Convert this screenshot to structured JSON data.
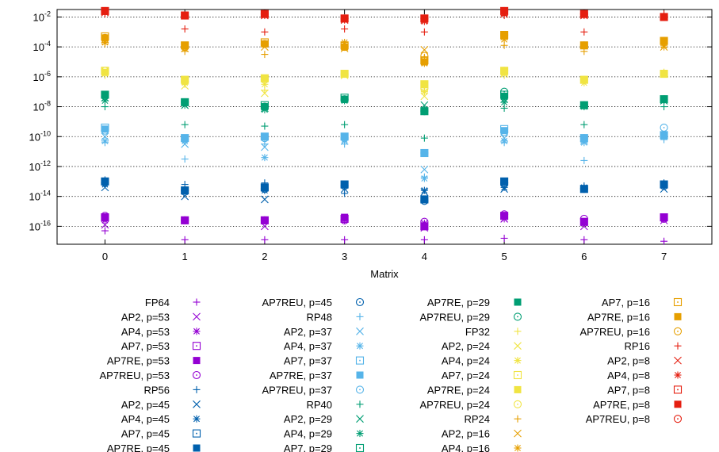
{
  "chart_data": {
    "type": "scatter",
    "xlabel": "Matrix",
    "ylabel": "",
    "x_ticks": [
      "0",
      "1",
      "2",
      "3",
      "4",
      "5",
      "6",
      "7"
    ],
    "xlim": [
      -0.6,
      7.6
    ],
    "ylim_log10": [
      -17.2,
      -1.5
    ],
    "y_scale": "log",
    "y_ticks": [
      {
        "exp": -2,
        "base": "10",
        "sup": "-2"
      },
      {
        "exp": -4,
        "base": "10",
        "sup": "-4"
      },
      {
        "exp": -6,
        "base": "10",
        "sup": "-6"
      },
      {
        "exp": -8,
        "base": "10",
        "sup": "-8"
      },
      {
        "exp": -10,
        "base": "10",
        "sup": "-10"
      },
      {
        "exp": -12,
        "base": "10",
        "sup": "-12"
      },
      {
        "exp": -14,
        "base": "10",
        "sup": "-14"
      },
      {
        "exp": -16,
        "base": "10",
        "sup": "-16"
      }
    ],
    "grid": "dotted-horizontal",
    "legend_placement": "bottom",
    "series": [
      {
        "name": "FP64",
        "color": "#9400d3",
        "marker": "plus",
        "log10": [
          -16.3,
          -16.9,
          -16.9,
          -16.9,
          -16.9,
          -16.8,
          -16.9,
          -17.0
        ]
      },
      {
        "name": "AP2, p=53",
        "color": "#9400d3",
        "marker": "cross",
        "log10": [
          -15.9,
          -15.6,
          -16.0,
          -15.5,
          -16.1,
          -15.5,
          -16.0,
          -15.6
        ]
      },
      {
        "name": "AP4, p=53",
        "color": "#9400d3",
        "marker": "star",
        "log10": [
          -15.6,
          -15.6,
          -15.6,
          -15.6,
          -15.8,
          -15.5,
          -15.8,
          -15.5
        ]
      },
      {
        "name": "AP7, p=53",
        "color": "#9400d3",
        "marker": "square",
        "log10": [
          -15.4,
          -15.6,
          -15.6,
          -15.5,
          -16.0,
          -15.3,
          -15.7,
          -15.4
        ]
      },
      {
        "name": "AP7RE, p=53",
        "color": "#9400d3",
        "marker": "filled-square",
        "log10": [
          -15.4,
          -15.6,
          -15.6,
          -15.4,
          -16.0,
          -15.3,
          -15.7,
          -15.4
        ]
      },
      {
        "name": "AP7REU, p=53",
        "color": "#9400d3",
        "marker": "circle",
        "log10": [
          -15.3,
          -15.6,
          -15.6,
          -15.6,
          -15.7,
          -15.2,
          -15.5,
          -15.5
        ]
      },
      {
        "name": "RP56",
        "color": "#0060ad",
        "marker": "plus",
        "log10": [
          -12.9,
          -13.2,
          -13.1,
          -13.8,
          -14.2,
          -13.0,
          -13.3,
          -13.1
        ]
      },
      {
        "name": "AP2, p=45",
        "color": "#0060ad",
        "marker": "cross",
        "log10": [
          -13.4,
          -14.0,
          -14.2,
          -13.5,
          -13.7,
          -13.5,
          -13.5,
          -13.5
        ]
      },
      {
        "name": "AP4, p=45",
        "color": "#0060ad",
        "marker": "star",
        "log10": [
          -13.2,
          -13.7,
          -13.6,
          -13.3,
          -13.6,
          -13.4,
          -13.4,
          -13.3
        ]
      },
      {
        "name": "AP7, p=45",
        "color": "#0060ad",
        "marker": "square",
        "log10": [
          -13.0,
          -13.6,
          -13.4,
          -13.2,
          -14.2,
          -13.0,
          -13.5,
          -13.2
        ]
      },
      {
        "name": "AP7RE, p=45",
        "color": "#0060ad",
        "marker": "filled-square",
        "log10": [
          -13.0,
          -13.6,
          -13.4,
          -13.2,
          -14.2,
          -13.0,
          -13.5,
          -13.2
        ]
      },
      {
        "name": "AP7REU, p=45",
        "color": "#0060ad",
        "marker": "circle",
        "log10": [
          -13.1,
          -13.6,
          -13.5,
          -13.3,
          -14.3,
          -13.1,
          -13.5,
          -13.3
        ]
      },
      {
        "name": "RP48",
        "color": "#56b4e9",
        "marker": "plus",
        "log10": [
          -10.4,
          -11.5,
          -10.5,
          -10.5,
          -12.7,
          -10.4,
          -11.6,
          -10.2
        ]
      },
      {
        "name": "AP2, p=37",
        "color": "#56b4e9",
        "marker": "cross",
        "log10": [
          -10.0,
          -10.5,
          -10.7,
          -10.3,
          -12.2,
          -10.1,
          -10.3,
          -9.9
        ]
      },
      {
        "name": "AP4, p=37",
        "color": "#56b4e9",
        "marker": "star",
        "log10": [
          -10.3,
          -10.3,
          -11.4,
          -10.2,
          -12.8,
          -10.3,
          -10.4,
          -10.0
        ]
      },
      {
        "name": "AP7, p=37",
        "color": "#56b4e9",
        "marker": "square",
        "log10": [
          -9.4,
          -10.1,
          -10.0,
          -10.0,
          -11.1,
          -9.5,
          -10.1,
          -9.9
        ]
      },
      {
        "name": "AP7RE, p=37",
        "color": "#56b4e9",
        "marker": "filled-square",
        "log10": [
          -9.5,
          -10.1,
          -10.0,
          -10.0,
          -11.1,
          -9.6,
          -10.1,
          -9.9
        ]
      },
      {
        "name": "AP7REU, p=37",
        "color": "#56b4e9",
        "marker": "circle",
        "log10": [
          -9.6,
          -10.2,
          -10.1,
          -10.1,
          -11.1,
          -9.7,
          -10.1,
          -9.4
        ]
      },
      {
        "name": "RP40",
        "color": "#009e73",
        "marker": "plus",
        "log10": [
          -8.0,
          -9.2,
          -9.3,
          -9.2,
          -10.1,
          -8.1,
          -9.2,
          -8.0
        ]
      },
      {
        "name": "AP2, p=29",
        "color": "#009e73",
        "marker": "cross",
        "log10": [
          -7.4,
          -7.9,
          -8.1,
          -7.5,
          -7.9,
          -7.5,
          -7.9,
          -7.6
        ]
      },
      {
        "name": "AP4, p=29",
        "color": "#009e73",
        "marker": "star",
        "log10": [
          -7.6,
          -7.9,
          -8.2,
          -7.6,
          -8.2,
          -7.7,
          -8.0,
          -7.6
        ]
      },
      {
        "name": "AP7, p=29",
        "color": "#009e73",
        "marker": "square",
        "log10": [
          -7.2,
          -7.7,
          -7.9,
          -7.4,
          -8.3,
          -7.2,
          -7.9,
          -7.5
        ]
      },
      {
        "name": "AP7RE, p=29",
        "color": "#009e73",
        "marker": "filled-square",
        "log10": [
          -7.2,
          -7.7,
          -8.0,
          -7.5,
          -8.3,
          -7.3,
          -7.9,
          -7.5
        ]
      },
      {
        "name": "AP7REU, p=29",
        "color": "#009e73",
        "marker": "circle",
        "log10": [
          -7.3,
          -7.7,
          -8.0,
          -7.5,
          -8.3,
          -7.0,
          -7.9,
          -7.5
        ]
      },
      {
        "name": "FP32",
        "color": "#f0e442",
        "marker": "plus",
        "log10": [
          -5.9,
          -6.5,
          -6.9,
          -5.8,
          -6.9,
          -5.9,
          -6.3,
          -5.7
        ]
      },
      {
        "name": "AP2, p=24",
        "color": "#f0e442",
        "marker": "cross",
        "log10": [
          -5.6,
          -6.6,
          -7.1,
          -5.9,
          -7.3,
          -5.8,
          -6.2,
          -5.8
        ]
      },
      {
        "name": "AP4, p=24",
        "color": "#f0e442",
        "marker": "star",
        "log10": [
          -5.8,
          -6.4,
          -6.5,
          -5.8,
          -7.0,
          -5.7,
          -6.4,
          -5.8
        ]
      },
      {
        "name": "AP7, p=24",
        "color": "#f0e442",
        "marker": "square",
        "log10": [
          -5.6,
          -6.2,
          -6.1,
          -5.8,
          -6.5,
          -5.6,
          -6.2,
          -5.8
        ]
      },
      {
        "name": "AP7RE, p=24",
        "color": "#f0e442",
        "marker": "filled-square",
        "log10": [
          -5.7,
          -6.2,
          -6.1,
          -5.8,
          -6.5,
          -5.6,
          -6.2,
          -5.8
        ]
      },
      {
        "name": "AP7REU, p=24",
        "color": "#f0e442",
        "marker": "circle",
        "log10": [
          -5.6,
          -6.3,
          -6.2,
          -5.8,
          -6.8,
          -5.6,
          -6.2,
          -5.8
        ]
      },
      {
        "name": "RP24",
        "color": "#e69f00",
        "marker": "plus",
        "log10": [
          -3.8,
          -4.3,
          -4.5,
          -3.9,
          -4.7,
          -3.9,
          -4.3,
          -4.0
        ]
      },
      {
        "name": "AP2, p=16",
        "color": "#e69f00",
        "marker": "cross",
        "log10": [
          -3.5,
          -4.1,
          -4.0,
          -4.1,
          -4.2,
          -3.3,
          -3.9,
          -4.0
        ]
      },
      {
        "name": "AP4, p=16",
        "color": "#e69f00",
        "marker": "star",
        "log10": [
          -3.7,
          -4.0,
          -3.8,
          -3.7,
          -5.1,
          -3.5,
          -3.9,
          -3.9
        ]
      },
      {
        "name": "AP7, p=16",
        "color": "#e69f00",
        "marker": "square",
        "log10": [
          -3.3,
          -3.9,
          -3.7,
          -3.9,
          -4.9,
          -3.2,
          -3.9,
          -3.6
        ]
      },
      {
        "name": "AP7RE, p=16",
        "color": "#e69f00",
        "marker": "filled-square",
        "log10": [
          -3.4,
          -3.9,
          -3.8,
          -4.0,
          -5.0,
          -3.2,
          -3.9,
          -3.6
        ]
      },
      {
        "name": "AP7REU, p=16",
        "color": "#e69f00",
        "marker": "circle",
        "log10": [
          -3.4,
          -4.0,
          -3.8,
          -4.0,
          -4.6,
          -3.2,
          -3.9,
          -3.6
        ]
      },
      {
        "name": "RP16",
        "color": "#e51e10",
        "marker": "plus",
        "log10": [
          -1.8,
          -2.8,
          -3.0,
          -2.8,
          -3.0,
          -1.9,
          -3.0,
          -1.8
        ]
      },
      {
        "name": "AP2, p=8",
        "color": "#e51e10",
        "marker": "cross",
        "log10": [
          -1.7,
          -1.9,
          -1.9,
          -2.2,
          -2.2,
          -1.8,
          -1.9,
          -2.0
        ]
      },
      {
        "name": "AP4, p=8",
        "color": "#e51e10",
        "marker": "star",
        "log10": [
          -1.7,
          -1.9,
          -1.9,
          -2.2,
          -2.3,
          -1.8,
          -1.9,
          -2.0
        ]
      },
      {
        "name": "AP7, p=8",
        "color": "#e51e10",
        "marker": "square",
        "log10": [
          -1.6,
          -1.9,
          -1.8,
          -2.1,
          -2.1,
          -1.6,
          -1.8,
          -2.0
        ]
      },
      {
        "name": "AP7RE, p=8",
        "color": "#e51e10",
        "marker": "filled-square",
        "log10": [
          -1.6,
          -1.9,
          -1.8,
          -2.1,
          -2.1,
          -1.6,
          -1.8,
          -2.0
        ]
      },
      {
        "name": "AP7REU, p=8",
        "color": "#e51e10",
        "marker": "circle",
        "log10": [
          -1.6,
          -1.9,
          -1.8,
          -2.1,
          -2.1,
          -1.6,
          -1.8,
          -2.0
        ]
      }
    ]
  }
}
